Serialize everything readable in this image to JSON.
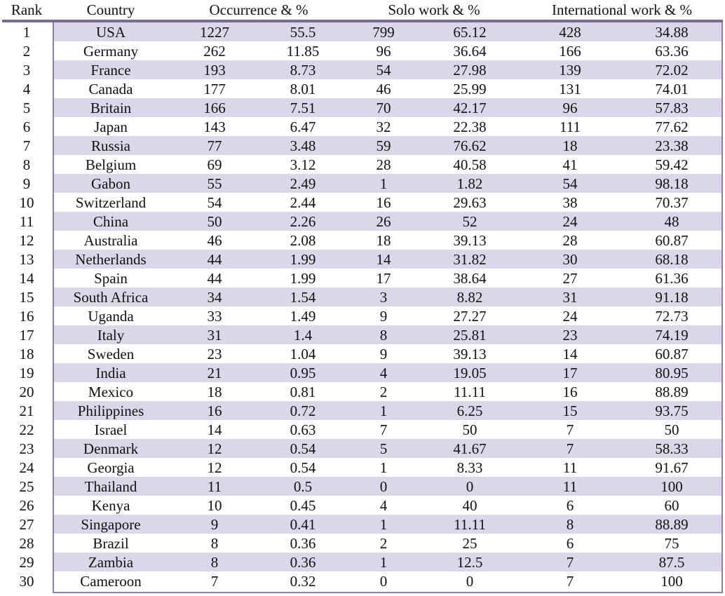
{
  "headers": {
    "rank": "Rank",
    "country": "Country",
    "occurrence": "Occurrence & %",
    "solo": "Solo work & %",
    "international": "International work & %"
  },
  "rows": [
    {
      "rank": "1",
      "country": "USA",
      "occ": "1227",
      "occ_pct": "55.5",
      "solo": "799",
      "solo_pct": "65.12",
      "intl": "428",
      "intl_pct": "34.88"
    },
    {
      "rank": "2",
      "country": "Germany",
      "occ": "262",
      "occ_pct": "11.85",
      "solo": "96",
      "solo_pct": "36.64",
      "intl": "166",
      "intl_pct": "63.36"
    },
    {
      "rank": "3",
      "country": "France",
      "occ": "193",
      "occ_pct": "8.73",
      "solo": "54",
      "solo_pct": "27.98",
      "intl": "139",
      "intl_pct": "72.02"
    },
    {
      "rank": "4",
      "country": "Canada",
      "occ": "177",
      "occ_pct": "8.01",
      "solo": "46",
      "solo_pct": "25.99",
      "intl": "131",
      "intl_pct": "74.01"
    },
    {
      "rank": "5",
      "country": "Britain",
      "occ": "166",
      "occ_pct": "7.51",
      "solo": "70",
      "solo_pct": "42.17",
      "intl": "96",
      "intl_pct": "57.83"
    },
    {
      "rank": "6",
      "country": "Japan",
      "occ": "143",
      "occ_pct": "6.47",
      "solo": "32",
      "solo_pct": "22.38",
      "intl": "111",
      "intl_pct": "77.62"
    },
    {
      "rank": "7",
      "country": "Russia",
      "occ": "77",
      "occ_pct": "3.48",
      "solo": "59",
      "solo_pct": "76.62",
      "intl": "18",
      "intl_pct": "23.38"
    },
    {
      "rank": "8",
      "country": "Belgium",
      "occ": "69",
      "occ_pct": "3.12",
      "solo": "28",
      "solo_pct": "40.58",
      "intl": "41",
      "intl_pct": "59.42"
    },
    {
      "rank": "9",
      "country": "Gabon",
      "occ": "55",
      "occ_pct": "2.49",
      "solo": "1",
      "solo_pct": "1.82",
      "intl": "54",
      "intl_pct": "98.18"
    },
    {
      "rank": "10",
      "country": "Switzerland",
      "occ": "54",
      "occ_pct": "2.44",
      "solo": "16",
      "solo_pct": "29.63",
      "intl": "38",
      "intl_pct": "70.37"
    },
    {
      "rank": "11",
      "country": "China",
      "occ": "50",
      "occ_pct": "2.26",
      "solo": "26",
      "solo_pct": "52",
      "intl": "24",
      "intl_pct": "48"
    },
    {
      "rank": "12",
      "country": "Australia",
      "occ": "46",
      "occ_pct": "2.08",
      "solo": "18",
      "solo_pct": "39.13",
      "intl": "28",
      "intl_pct": "60.87"
    },
    {
      "rank": "13",
      "country": "Netherlands",
      "occ": "44",
      "occ_pct": "1.99",
      "solo": "14",
      "solo_pct": "31.82",
      "intl": "30",
      "intl_pct": "68.18"
    },
    {
      "rank": "14",
      "country": "Spain",
      "occ": "44",
      "occ_pct": "1.99",
      "solo": "17",
      "solo_pct": "38.64",
      "intl": "27",
      "intl_pct": "61.36"
    },
    {
      "rank": "15",
      "country": "South Africa",
      "occ": "34",
      "occ_pct": "1.54",
      "solo": "3",
      "solo_pct": "8.82",
      "intl": "31",
      "intl_pct": "91.18"
    },
    {
      "rank": "16",
      "country": "Uganda",
      "occ": "33",
      "occ_pct": "1.49",
      "solo": "9",
      "solo_pct": "27.27",
      "intl": "24",
      "intl_pct": "72.73"
    },
    {
      "rank": "17",
      "country": "Italy",
      "occ": "31",
      "occ_pct": "1.4",
      "solo": "8",
      "solo_pct": "25.81",
      "intl": "23",
      "intl_pct": "74.19"
    },
    {
      "rank": "18",
      "country": "Sweden",
      "occ": "23",
      "occ_pct": "1.04",
      "solo": "9",
      "solo_pct": "39.13",
      "intl": "14",
      "intl_pct": "60.87"
    },
    {
      "rank": "19",
      "country": "India",
      "occ": "21",
      "occ_pct": "0.95",
      "solo": "4",
      "solo_pct": "19.05",
      "intl": "17",
      "intl_pct": "80.95"
    },
    {
      "rank": "20",
      "country": "Mexico",
      "occ": "18",
      "occ_pct": "0.81",
      "solo": "2",
      "solo_pct": "11.11",
      "intl": "16",
      "intl_pct": "88.89"
    },
    {
      "rank": "21",
      "country": "Philippines",
      "occ": "16",
      "occ_pct": "0.72",
      "solo": "1",
      "solo_pct": "6.25",
      "intl": "15",
      "intl_pct": "93.75"
    },
    {
      "rank": "22",
      "country": "Israel",
      "occ": "14",
      "occ_pct": "0.63",
      "solo": "7",
      "solo_pct": "50",
      "intl": "7",
      "intl_pct": "50"
    },
    {
      "rank": "23",
      "country": "Denmark",
      "occ": "12",
      "occ_pct": "0.54",
      "solo": "5",
      "solo_pct": "41.67",
      "intl": "7",
      "intl_pct": "58.33"
    },
    {
      "rank": "24",
      "country": "Georgia",
      "occ": "12",
      "occ_pct": "0.54",
      "solo": "1",
      "solo_pct": "8.33",
      "intl": "11",
      "intl_pct": "91.67"
    },
    {
      "rank": "25",
      "country": "Thailand",
      "occ": "11",
      "occ_pct": "0.5",
      "solo": "0",
      "solo_pct": "0",
      "intl": "11",
      "intl_pct": "100"
    },
    {
      "rank": "26",
      "country": "Kenya",
      "occ": "10",
      "occ_pct": "0.45",
      "solo": "4",
      "solo_pct": "40",
      "intl": "6",
      "intl_pct": "60"
    },
    {
      "rank": "27",
      "country": "Singapore",
      "occ": "9",
      "occ_pct": "0.41",
      "solo": "1",
      "solo_pct": "11.11",
      "intl": "8",
      "intl_pct": "88.89"
    },
    {
      "rank": "28",
      "country": "Brazil",
      "occ": "8",
      "occ_pct": "0.36",
      "solo": "2",
      "solo_pct": "25",
      "intl": "6",
      "intl_pct": "75"
    },
    {
      "rank": "29",
      "country": "Zambia",
      "occ": "8",
      "occ_pct": "0.36",
      "solo": "1",
      "solo_pct": "12.5",
      "intl": "7",
      "intl_pct": "87.5"
    },
    {
      "rank": "30",
      "country": "Cameroon",
      "occ": "7",
      "occ_pct": "0.32",
      "solo": "0",
      "solo_pct": "0",
      "intl": "7",
      "intl_pct": "100"
    }
  ],
  "colors": {
    "row_shade": "#dcd7e8",
    "rule": "#7b6a96",
    "border": "#8f80aa"
  }
}
